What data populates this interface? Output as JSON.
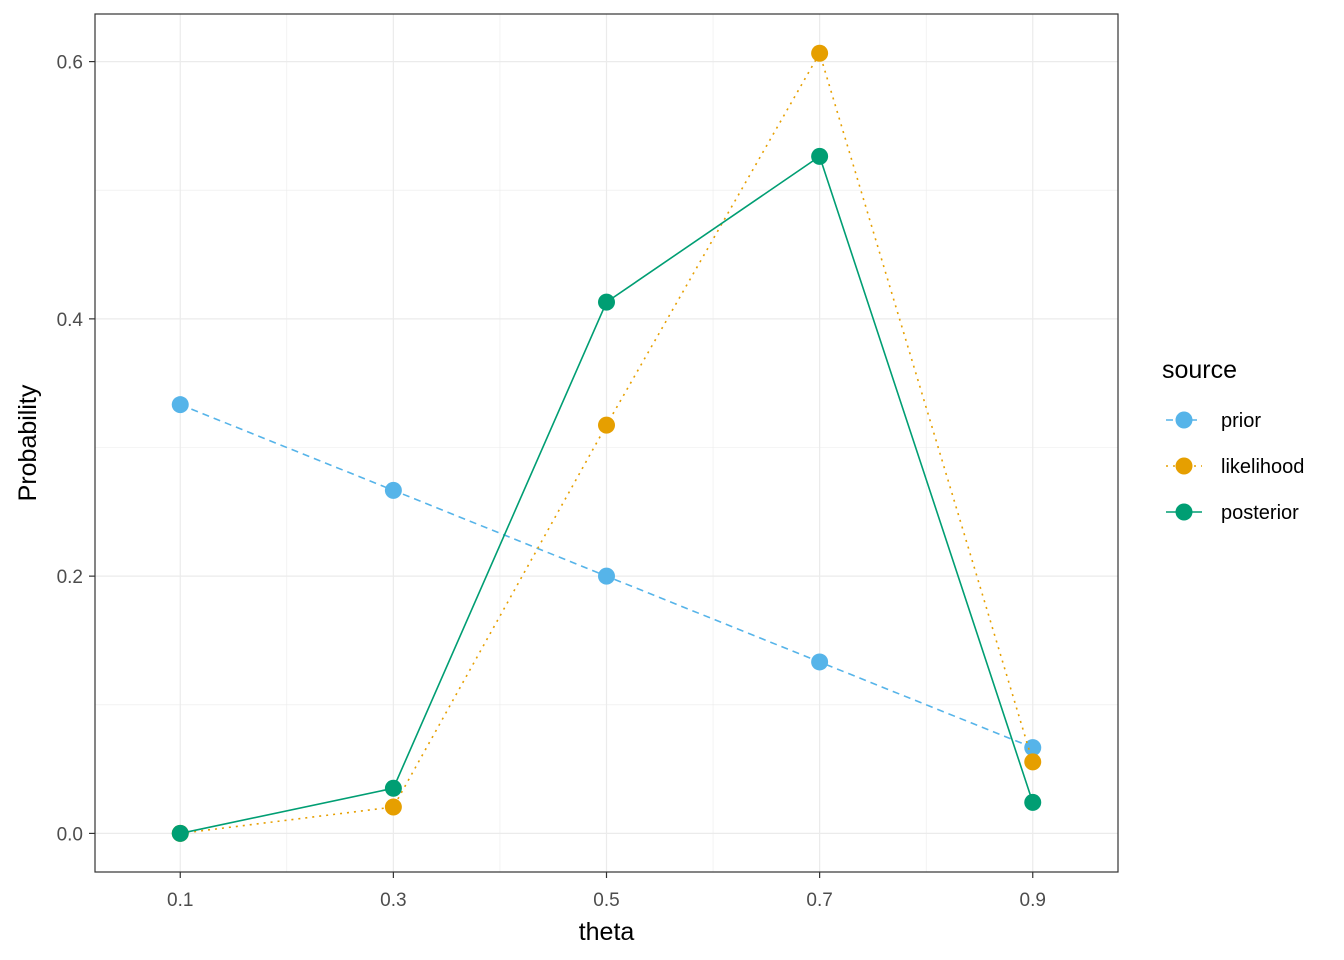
{
  "chart_data": {
    "type": "line",
    "x": [
      0.1,
      0.3,
      0.5,
      0.7,
      0.9
    ],
    "x_ticks": [
      "0.1",
      "0.3",
      "0.5",
      "0.7",
      "0.9"
    ],
    "y_ticks": [
      "0.0",
      "0.2",
      "0.4",
      "0.6"
    ],
    "xlim": [
      0.02,
      0.98
    ],
    "ylim": [
      -0.03,
      0.637
    ],
    "xlabel": "theta",
    "ylabel": "Probability",
    "grid": true,
    "legend": {
      "title": "source",
      "position": "right"
    },
    "series": [
      {
        "name": "prior",
        "color": "#56B4E9",
        "linestyle": "dashed",
        "values": [
          0.3333,
          0.2667,
          0.2,
          0.1333,
          0.0667
        ]
      },
      {
        "name": "likelihood",
        "color": "#E69F00",
        "linestyle": "dotted",
        "values": [
          0.0,
          0.0205,
          0.3174,
          0.6065,
          0.0556
        ]
      },
      {
        "name": "posterior",
        "color": "#009E73",
        "linestyle": "solid",
        "values": [
          0.0,
          0.0351,
          0.413,
          0.5263,
          0.0241
        ]
      }
    ]
  }
}
